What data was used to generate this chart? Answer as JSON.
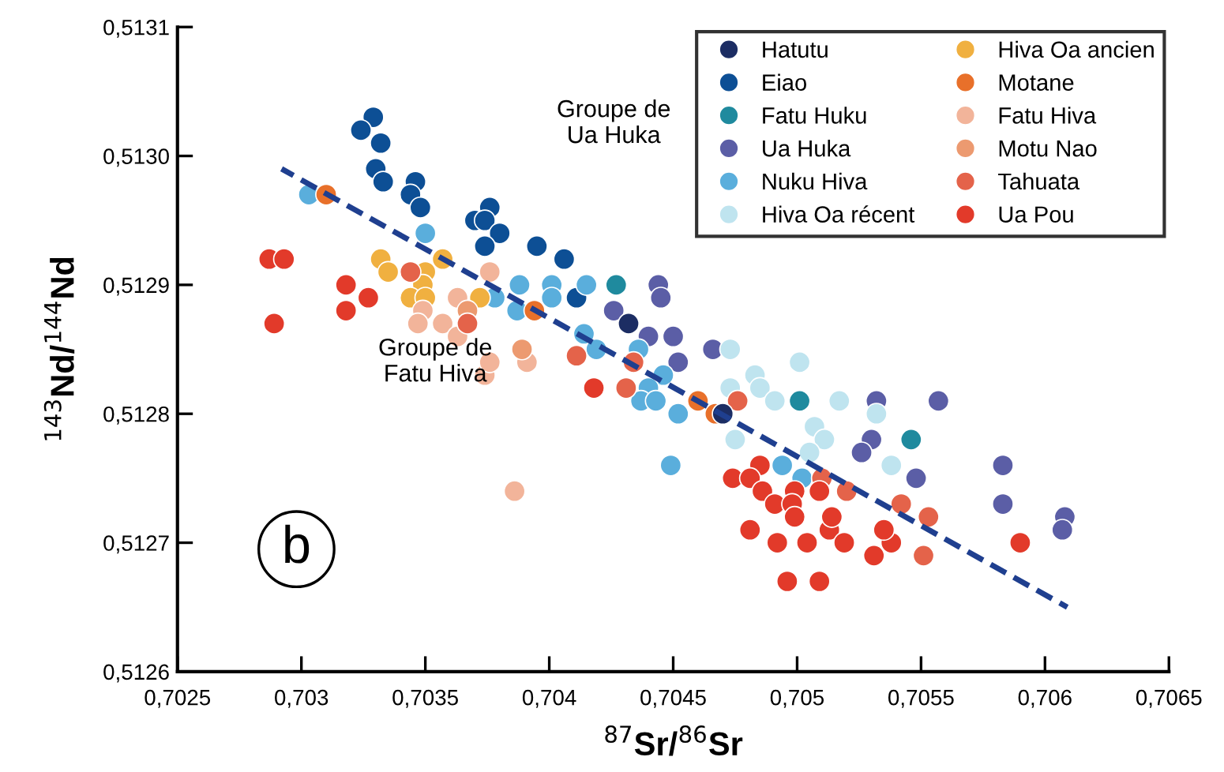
{
  "chart_data": {
    "type": "scatter",
    "xlabel": "$^{87}$Sr/$^{86}$Sr",
    "ylabel": "$^{143}$Nd/$^{144}$Nd",
    "xlim": [
      0.7025,
      0.7065
    ],
    "ylim": [
      0.5126,
      0.5131
    ],
    "xticks": [
      {
        "value": 0.7025,
        "label": "0,7025"
      },
      {
        "value": 0.703,
        "label": "0,703"
      },
      {
        "value": 0.7035,
        "label": "0,7035"
      },
      {
        "value": 0.704,
        "label": "0,704"
      },
      {
        "value": 0.7045,
        "label": "0,7045"
      },
      {
        "value": 0.705,
        "label": "0,705"
      },
      {
        "value": 0.7055,
        "label": "0,7055"
      },
      {
        "value": 0.706,
        "label": "0,706"
      },
      {
        "value": 0.7065,
        "label": "0,7065"
      }
    ],
    "yticks": [
      {
        "value": 0.5126,
        "label": "0,5126"
      },
      {
        "value": 0.5127,
        "label": "0,5127"
      },
      {
        "value": 0.5128,
        "label": "0,5128"
      },
      {
        "value": 0.5129,
        "label": "0,5129"
      },
      {
        "value": 0.513,
        "label": "0,5130"
      },
      {
        "value": 0.5131,
        "label": "0,5131"
      }
    ],
    "grid": false,
    "legend": "top right",
    "marker": "circle",
    "annotations": [
      "Groupe de\nUa Huka",
      "Groupe de\nFatu Hiva",
      "b"
    ],
    "series": [
      {
        "name": "Hatutu",
        "color": "#1c2d63",
        "x": [
          0.70432,
          0.7047
        ],
        "values": [
          0.51287,
          0.5128
        ]
      },
      {
        "name": "Eiao",
        "color": "#0d4f95",
        "x": [
          0.70329,
          0.70324,
          0.70332,
          0.7033,
          0.70333,
          0.70346,
          0.70344,
          0.70348,
          0.70376,
          0.7037,
          0.70374,
          0.7038,
          0.70374,
          0.70395,
          0.70406,
          0.70411
        ],
        "values": [
          0.51303,
          0.51302,
          0.51301,
          0.51299,
          0.51298,
          0.51298,
          0.51297,
          0.51296,
          0.51296,
          0.51295,
          0.51295,
          0.51294,
          0.51293,
          0.51293,
          0.51292,
          0.51289
        ]
      },
      {
        "name": "Fatu Huku",
        "color": "#1f8a9e",
        "x": [
          0.70427,
          0.70501,
          0.70546
        ],
        "values": [
          0.5129,
          0.51281,
          0.51278
        ]
      },
      {
        "name": "Ua Huka",
        "color": "#5b5ea6",
        "x": [
          0.70444,
          0.70445,
          0.70426,
          0.7044,
          0.7045,
          0.70452,
          0.70466,
          0.70532,
          0.70557,
          0.7053,
          0.70526,
          0.70548,
          0.70583,
          0.70583,
          0.70608,
          0.70607
        ],
        "values": [
          0.5129,
          0.51289,
          0.51288,
          0.51286,
          0.51286,
          0.51284,
          0.51285,
          0.51281,
          0.51281,
          0.51278,
          0.51277,
          0.51275,
          0.51276,
          0.51273,
          0.51272,
          0.51271
        ]
      },
      {
        "name": "Nuku Hiva",
        "color": "#5aaedc",
        "x": [
          0.70303,
          0.7035,
          0.70388,
          0.70401,
          0.70415,
          0.70401,
          0.70378,
          0.70387,
          0.70414,
          0.70419,
          0.70436,
          0.70446,
          0.7044,
          0.70437,
          0.70443,
          0.70452,
          0.70449,
          0.70494,
          0.70502
        ],
        "values": [
          0.51297,
          0.51294,
          0.5129,
          0.5129,
          0.5129,
          0.51289,
          0.51289,
          0.51288,
          0.512862,
          0.51285,
          0.51285,
          0.51283,
          0.51282,
          0.51281,
          0.51281,
          0.5128,
          0.51276,
          0.51276,
          0.51275
        ]
      },
      {
        "name": "Hiva Oa récent",
        "color": "#bfe4ef",
        "x": [
          0.70473,
          0.70483,
          0.70485,
          0.70501,
          0.70491,
          0.70473,
          0.70507,
          0.70511,
          0.70517,
          0.70532,
          0.70475,
          0.70538,
          0.70505
        ],
        "values": [
          0.51285,
          0.51283,
          0.51282,
          0.51284,
          0.51281,
          0.51282,
          0.51279,
          0.51278,
          0.51281,
          0.5128,
          0.51278,
          0.51276,
          0.51277
        ]
      },
      {
        "name": "Hiva Oa ancien",
        "color": "#f0b040",
        "x": [
          0.70332,
          0.70335,
          0.7035,
          0.70357,
          0.70349,
          0.70344,
          0.7035,
          0.70372
        ],
        "values": [
          0.51292,
          0.51291,
          0.51291,
          0.51292,
          0.5129,
          0.51289,
          0.51289,
          0.51289
        ]
      },
      {
        "name": "Motane",
        "color": "#e8702a",
        "x": [
          0.7031,
          0.70394,
          0.7046,
          0.70467
        ],
        "values": [
          0.51297,
          0.51288,
          0.51281,
          0.5128
        ]
      },
      {
        "name": "Fatu Hiva",
        "color": "#f2b49a",
        "x": [
          0.70376,
          0.70363,
          0.70349,
          0.70347,
          0.70357,
          0.70363,
          0.70374,
          0.70376,
          0.70391,
          0.70386
        ],
        "values": [
          0.51291,
          0.51289,
          0.51288,
          0.51287,
          0.51287,
          0.51286,
          0.51283,
          0.51284,
          0.51284,
          0.51274
        ]
      },
      {
        "name": "Motu Nao",
        "color": "#ec9a70",
        "x": [
          0.70367,
          0.70389
        ],
        "values": [
          0.51288,
          0.51285
        ]
      },
      {
        "name": "Tahuata",
        "color": "#e4634a",
        "x": [
          0.70344,
          0.70367,
          0.70411,
          0.70434,
          0.70431,
          0.70476,
          0.7052,
          0.70553,
          0.70542,
          0.70551,
          0.7051
        ],
        "values": [
          0.51291,
          0.51287,
          0.512845,
          0.51284,
          0.51282,
          0.51281,
          0.51274,
          0.51272,
          0.51273,
          0.51269,
          0.51275
        ]
      },
      {
        "name": "Ua Pou",
        "color": "#e23a2a",
        "x": [
          0.70287,
          0.70293,
          0.70289,
          0.70318,
          0.70318,
          0.70327,
          0.70418,
          0.70474,
          0.70485,
          0.70481,
          0.70486,
          0.70491,
          0.70499,
          0.70498,
          0.70509,
          0.70499,
          0.70481,
          0.70492,
          0.70504,
          0.70513,
          0.70519,
          0.70496,
          0.70509,
          0.70531,
          0.70538,
          0.70535,
          0.7059,
          0.70514
        ],
        "values": [
          0.51292,
          0.51292,
          0.51287,
          0.5129,
          0.51288,
          0.51289,
          0.51282,
          0.51275,
          0.51276,
          0.51275,
          0.51274,
          0.51273,
          0.51274,
          0.51273,
          0.51274,
          0.51272,
          0.51271,
          0.5127,
          0.5127,
          0.51271,
          0.5127,
          0.51267,
          0.51267,
          0.51269,
          0.5127,
          0.51271,
          0.5127,
          0.51272
        ]
      },
      {
        "type": "line",
        "color": "#1f3f8f",
        "line_style": "dashed",
        "marker": "none",
        "x": [
          0.70292,
          0.70609
        ],
        "values": [
          0.51299,
          0.51265
        ]
      }
    ]
  }
}
